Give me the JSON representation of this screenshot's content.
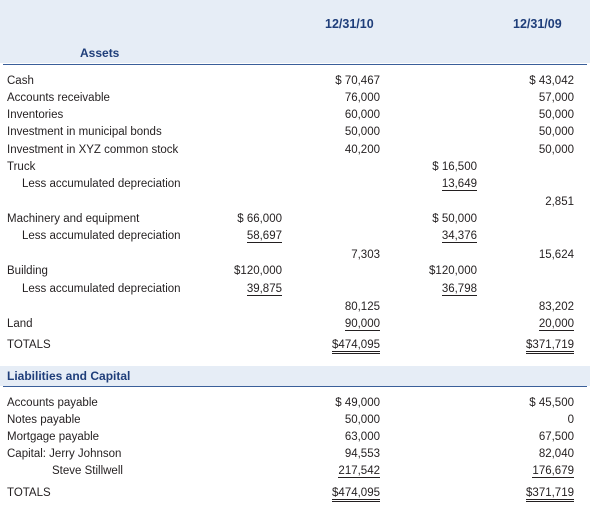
{
  "columns": {
    "y2010": "12/31/10",
    "y2009": "12/31/09"
  },
  "assets": {
    "title": "Assets",
    "cash": {
      "label": "Cash",
      "v10": "$ 70,467",
      "v09": "$ 43,042"
    },
    "ar": {
      "label": "Accounts receivable",
      "v10": "76,000",
      "v09": "57,000"
    },
    "inventories": {
      "label": "Inventories",
      "v10": "60,000",
      "v09": "50,000"
    },
    "muni": {
      "label": "Investment in municipal bonds",
      "v10": "50,000",
      "v09": "50,000"
    },
    "xyz": {
      "label": "Investment in XYZ common stock",
      "v10": "40,200",
      "v09": "50,000"
    },
    "truck": {
      "label": "Truck",
      "cost09": "$ 16,500"
    },
    "truck_dep": {
      "label": "Less accumulated depreciation",
      "dep09": "13,649",
      "net09": "2,851"
    },
    "mach": {
      "label": "Machinery and equipment",
      "cost10": "$ 66,000",
      "cost09": "$ 50,000"
    },
    "mach_dep": {
      "label": "Less accumulated depreciation",
      "dep10": "58,697",
      "dep09": "34,376",
      "net10": "7,303",
      "net09": "15,624"
    },
    "bldg": {
      "label": "Building",
      "cost10": "$120,000",
      "cost09": "$120,000"
    },
    "bldg_dep": {
      "label": "Less accumulated depreciation",
      "dep10": "39,875",
      "dep09": "36,798",
      "net10": "80,125",
      "net09": "83,202"
    },
    "land": {
      "label": "Land",
      "v10": "90,000",
      "v09": "20,000"
    },
    "totals": {
      "label": "TOTALS",
      "v10": "$474,095",
      "v09": "$371,719"
    }
  },
  "liabilities": {
    "title": "Liabilities and Capital",
    "ap": {
      "label": "Accounts payable",
      "v10": "$ 49,000",
      "v09": "$ 45,500"
    },
    "np": {
      "label": "Notes payable",
      "v10": "50,000",
      "v09": "0"
    },
    "mp": {
      "label": "Mortgage payable",
      "v10": "63,000",
      "v09": "67,500"
    },
    "cap_jj": {
      "label": "Capital: Jerry Johnson",
      "v10": "94,553",
      "v09": "82,040"
    },
    "cap_ss": {
      "label": "Steve Stillwell",
      "v10": "217,542",
      "v09": "176,679"
    },
    "totals": {
      "label": "TOTALS",
      "v10": "$474,095",
      "v09": "$371,719"
    }
  }
}
